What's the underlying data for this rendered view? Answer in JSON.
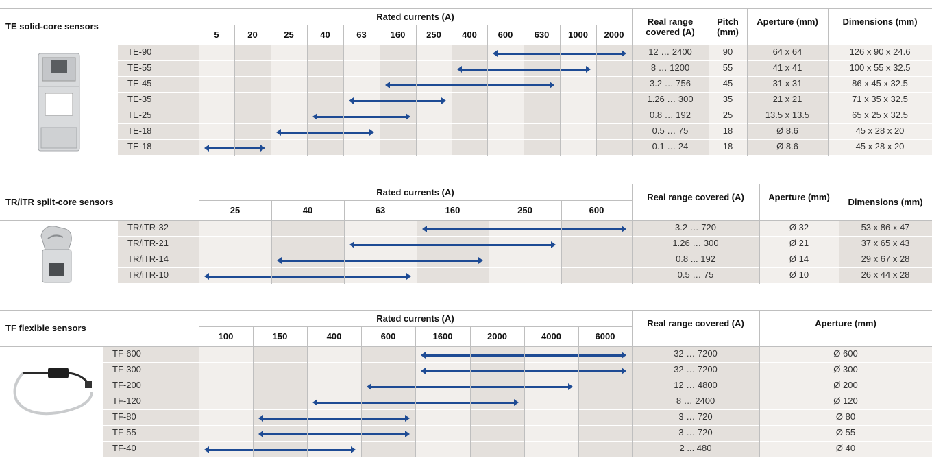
{
  "te": {
    "title": "TE solid-core sensors",
    "rated_header": "Rated currents (A)",
    "currents": [
      "5",
      "20",
      "25",
      "40",
      "63",
      "160",
      "250",
      "400",
      "600",
      "630",
      "1000",
      "2000"
    ],
    "col_real": "Real range covered (A)",
    "col_pitch": "Pitch (mm)",
    "col_aperture": "Aperture (mm)",
    "col_dimensions": "Dimensions (mm)",
    "rows": [
      {
        "name": "TE-90",
        "from": 8,
        "to": 11,
        "real": "12 … 2400",
        "pitch": "90",
        "aperture": "64 x 64",
        "dims": "126 x 90 x 24.6"
      },
      {
        "name": "TE-55",
        "from": 7,
        "to": 10,
        "real": "8 … 1200",
        "pitch": "55",
        "aperture": "41 x 41",
        "dims": "100 x 55 x 32.5"
      },
      {
        "name": "TE-45",
        "from": 5,
        "to": 9,
        "real": "3.2 … 756",
        "pitch": "45",
        "aperture": "31 x 31",
        "dims": "86 x 45 x 32.5"
      },
      {
        "name": "TE-35",
        "from": 4,
        "to": 6,
        "real": "1.26 … 300",
        "pitch": "35",
        "aperture": "21 x 21",
        "dims": "71 x 35 x 32.5"
      },
      {
        "name": "TE-25",
        "from": 3,
        "to": 5,
        "real": "0.8 … 192",
        "pitch": "25",
        "aperture": "13.5 x 13.5",
        "dims": "65 x 25 x 32.5"
      },
      {
        "name": "TE-18",
        "from": 2,
        "to": 4,
        "real": "0.5 … 75",
        "pitch": "18",
        "aperture": "Ø 8.6",
        "dims": "45 x 28 x 20"
      },
      {
        "name": "TE-18",
        "from": 0,
        "to": 1,
        "real": "0.1 … 24",
        "pitch": "18",
        "aperture": "Ø 8.6",
        "dims": "45 x 28 x 20"
      }
    ]
  },
  "tr": {
    "title": "TR/iTR split-core sensors",
    "rated_header": "Rated currents (A)",
    "currents": [
      "25",
      "40",
      "63",
      "160",
      "250",
      "600"
    ],
    "col_real": "Real range covered (A)",
    "col_aperture": "Aperture (mm)",
    "col_dimensions": "Dimensions (mm)",
    "rows": [
      {
        "name": "TR/iTR-32",
        "from": 3,
        "to": 5,
        "real": "3.2 … 720",
        "aperture": "Ø 32",
        "dims": "53 x 86 x 47"
      },
      {
        "name": "TR/iTR-21",
        "from": 2,
        "to": 4,
        "real": "1.26 … 300",
        "aperture": "Ø 21",
        "dims": "37 x 65 x 43"
      },
      {
        "name": "TR/iTR-14",
        "from": 1,
        "to": 3,
        "real": "0.8 ... 192",
        "aperture": "Ø 14",
        "dims": "29 x 67 x 28"
      },
      {
        "name": "TR/iTR-10",
        "from": 0,
        "to": 2,
        "real": "0.5 … 75",
        "aperture": "Ø 10",
        "dims": "26 x 44 x 28"
      }
    ]
  },
  "tf": {
    "title": "TF flexible sensors",
    "rated_header": "Rated currents (A)",
    "currents": [
      "100",
      "150",
      "400",
      "600",
      "1600",
      "2000",
      "4000",
      "6000"
    ],
    "col_real": "Real range covered (A)",
    "col_aperture": "Aperture (mm)",
    "rows": [
      {
        "name": "TF-600",
        "from": 4,
        "to": 7,
        "real": "32 … 7200",
        "aperture": "Ø 600"
      },
      {
        "name": "TF-300",
        "from": 4,
        "to": 7,
        "real": "32 … 7200",
        "aperture": "Ø 300"
      },
      {
        "name": "TF-200",
        "from": 3,
        "to": 6,
        "real": "12 … 4800",
        "aperture": "Ø 200"
      },
      {
        "name": "TF-120",
        "from": 2,
        "to": 5,
        "real": "8 … 2400",
        "aperture": "Ø 120"
      },
      {
        "name": "TF-80",
        "from": 1,
        "to": 3,
        "real": "3 … 720",
        "aperture": "Ø 80"
      },
      {
        "name": "TF-55",
        "from": 1,
        "to": 3,
        "real": "3 … 720",
        "aperture": "Ø 55"
      },
      {
        "name": "TF-40",
        "from": 0,
        "to": 2,
        "real": "2 ... 480",
        "aperture": "Ø 40"
      }
    ]
  },
  "colors": {
    "bar": "#1e4b94",
    "row_light": "#f2efec",
    "row_dark": "#e4e0dc",
    "grid": "#bfbfbf"
  }
}
